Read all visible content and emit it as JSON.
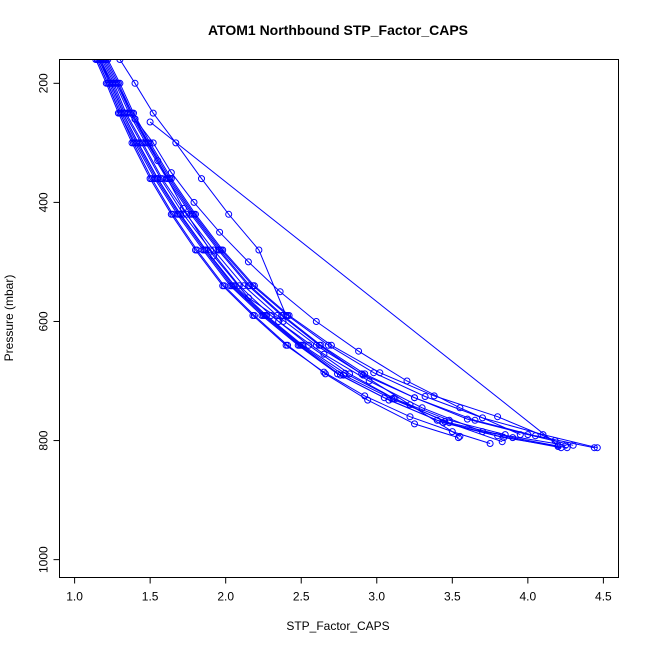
{
  "chart_data": {
    "type": "line",
    "title": "ATOM1 Northbound STP_Factor_CAPS",
    "xlabel": "STP_Factor_CAPS",
    "ylabel": "Pressure (mbar)",
    "xlim": [
      0.9,
      4.6
    ],
    "ylim": [
      1030,
      160
    ],
    "y_reversed": true,
    "x_ticks": [
      1.0,
      1.5,
      2.0,
      2.5,
      3.0,
      3.5,
      4.0,
      4.5
    ],
    "x_tick_labels": [
      "1.0",
      "1.5",
      "2.0",
      "2.5",
      "3.0",
      "3.5",
      "4.0",
      "4.5"
    ],
    "y_ticks": [
      200,
      400,
      600,
      800,
      1000
    ],
    "y_tick_labels": [
      "200",
      "400",
      "600",
      "800",
      "1000"
    ],
    "grid": false,
    "color": "#0000ff",
    "marker": "open-circle",
    "series": [
      {
        "x": [
          1.16,
          1.24,
          1.32,
          1.42,
          1.55,
          1.7,
          1.87,
          2.05,
          2.26,
          2.5,
          2.78,
          3.1,
          3.48,
          3.9,
          4.26
        ],
        "y": [
          160,
          200,
          250,
          300,
          360,
          420,
          480,
          540,
          590,
          640,
          690,
          730,
          770,
          795,
          812
        ]
      },
      {
        "x": [
          1.15,
          1.22,
          1.3,
          1.4,
          1.53,
          1.68,
          1.85,
          2.03,
          2.24,
          2.48,
          2.74,
          3.05,
          3.4,
          3.8,
          4.22
        ],
        "y": [
          160,
          200,
          250,
          300,
          360,
          420,
          480,
          540,
          590,
          640,
          688,
          728,
          766,
          792,
          812
        ]
      },
      {
        "x": [
          1.18,
          1.26,
          1.34,
          1.45,
          1.58,
          1.74,
          1.92,
          2.12,
          2.34,
          2.6,
          2.9,
          3.25,
          3.65,
          4.05,
          4.44
        ],
        "y": [
          160,
          200,
          250,
          300,
          360,
          420,
          480,
          540,
          590,
          640,
          688,
          728,
          766,
          792,
          812
        ]
      },
      {
        "x": [
          1.14,
          1.21,
          1.29,
          1.38,
          1.5,
          1.64,
          1.8,
          1.98,
          2.18,
          2.4,
          2.65,
          2.92,
          3.22,
          3.5,
          3.75
        ],
        "y": [
          160,
          200,
          250,
          300,
          360,
          420,
          480,
          540,
          590,
          640,
          685,
          725,
          760,
          785,
          805
        ]
      },
      {
        "x": [
          1.17,
          1.25,
          1.33,
          1.44,
          1.57,
          1.72,
          1.9,
          2.09,
          2.3,
          2.55,
          2.82,
          3.12,
          3.45,
          3.83
        ],
        "y": [
          160,
          200,
          250,
          300,
          360,
          420,
          480,
          540,
          590,
          640,
          688,
          730,
          768,
          802
        ]
      },
      {
        "x": [
          1.19,
          1.27,
          1.36,
          1.47,
          1.61,
          1.77,
          1.95,
          2.15,
          2.37,
          2.62,
          2.91,
          3.22,
          3.55
        ],
        "y": [
          160,
          200,
          250,
          300,
          360,
          420,
          480,
          540,
          590,
          640,
          690,
          740,
          793
        ]
      },
      {
        "x": [
          1.16,
          1.23,
          1.31,
          1.41,
          1.54,
          1.69,
          1.86,
          2.04,
          2.25,
          2.49,
          2.76,
          3.08,
          3.44,
          3.84,
          4.2
        ],
        "y": [
          160,
          200,
          250,
          300,
          360,
          420,
          480,
          540,
          590,
          640,
          690,
          732,
          770,
          795,
          810
        ]
      },
      {
        "x": [
          1.2,
          1.28,
          1.37,
          1.48,
          1.62,
          1.78,
          1.96,
          2.16,
          2.38,
          2.63,
          2.92,
          3.25,
          3.6,
          4.0,
          4.3
        ],
        "y": [
          160,
          200,
          250,
          300,
          360,
          420,
          480,
          540,
          590,
          640,
          688,
          728,
          764,
          790,
          808
        ]
      },
      {
        "x": [
          1.15,
          1.22,
          1.3,
          1.39,
          1.51,
          1.65,
          1.81,
          1.99,
          2.19,
          2.41,
          2.66,
          2.94,
          3.25,
          3.54
        ],
        "y": [
          160,
          200,
          250,
          300,
          360,
          420,
          480,
          540,
          590,
          640,
          688,
          732,
          772,
          795
        ]
      },
      {
        "x": [
          1.21,
          1.29,
          1.38,
          1.49,
          1.63,
          1.79,
          1.97,
          2.18,
          2.41,
          2.68,
          2.98,
          3.32,
          3.7,
          4.1,
          4.46
        ],
        "y": [
          160,
          200,
          250,
          300,
          360,
          420,
          480,
          540,
          590,
          640,
          686,
          726,
          762,
          790,
          812
        ]
      },
      {
        "x": [
          1.17,
          1.24,
          1.32,
          1.42,
          1.55,
          1.7,
          1.87,
          2.06,
          2.27,
          2.51,
          2.79,
          3.11,
          3.48,
          3.85
        ],
        "y": [
          160,
          200,
          250,
          300,
          360,
          420,
          480,
          540,
          590,
          640,
          687,
          729,
          766,
          790
        ]
      },
      {
        "x": [
          1.22,
          1.3,
          1.39,
          1.5,
          1.64,
          1.8,
          1.98,
          2.19,
          2.42,
          2.7,
          3.02,
          3.38,
          3.8,
          4.18
        ],
        "y": [
          160,
          200,
          250,
          300,
          360,
          420,
          480,
          540,
          590,
          640,
          686,
          725,
          760,
          800
        ]
      },
      {
        "x": [
          1.3,
          1.4,
          1.52,
          1.67,
          1.84,
          2.02,
          2.22,
          2.4
        ],
        "y": [
          160,
          200,
          250,
          300,
          360,
          420,
          480,
          590
        ]
      },
      {
        "x": [
          1.4,
          1.52,
          1.64,
          1.79,
          1.96,
          2.15,
          2.36,
          2.6,
          2.88,
          3.2,
          3.55,
          3.95
        ],
        "y": [
          260,
          300,
          350,
          400,
          450,
          500,
          550,
          600,
          650,
          700,
          745,
          790
        ]
      },
      {
        "x": [
          1.5,
          4.2
        ],
        "y": [
          265,
          808
        ]
      },
      {
        "x": [
          1.28,
          1.4,
          1.55,
          1.72,
          1.92,
          2.15,
          2.38
        ],
        "y": [
          200,
          260,
          330,
          410,
          490,
          560,
          600
        ]
      },
      {
        "x": [
          2.35,
          2.65,
          2.95,
          3.3,
          3.7,
          4.25
        ],
        "y": [
          600,
          655,
          700,
          745,
          785,
          808
        ]
      }
    ]
  }
}
